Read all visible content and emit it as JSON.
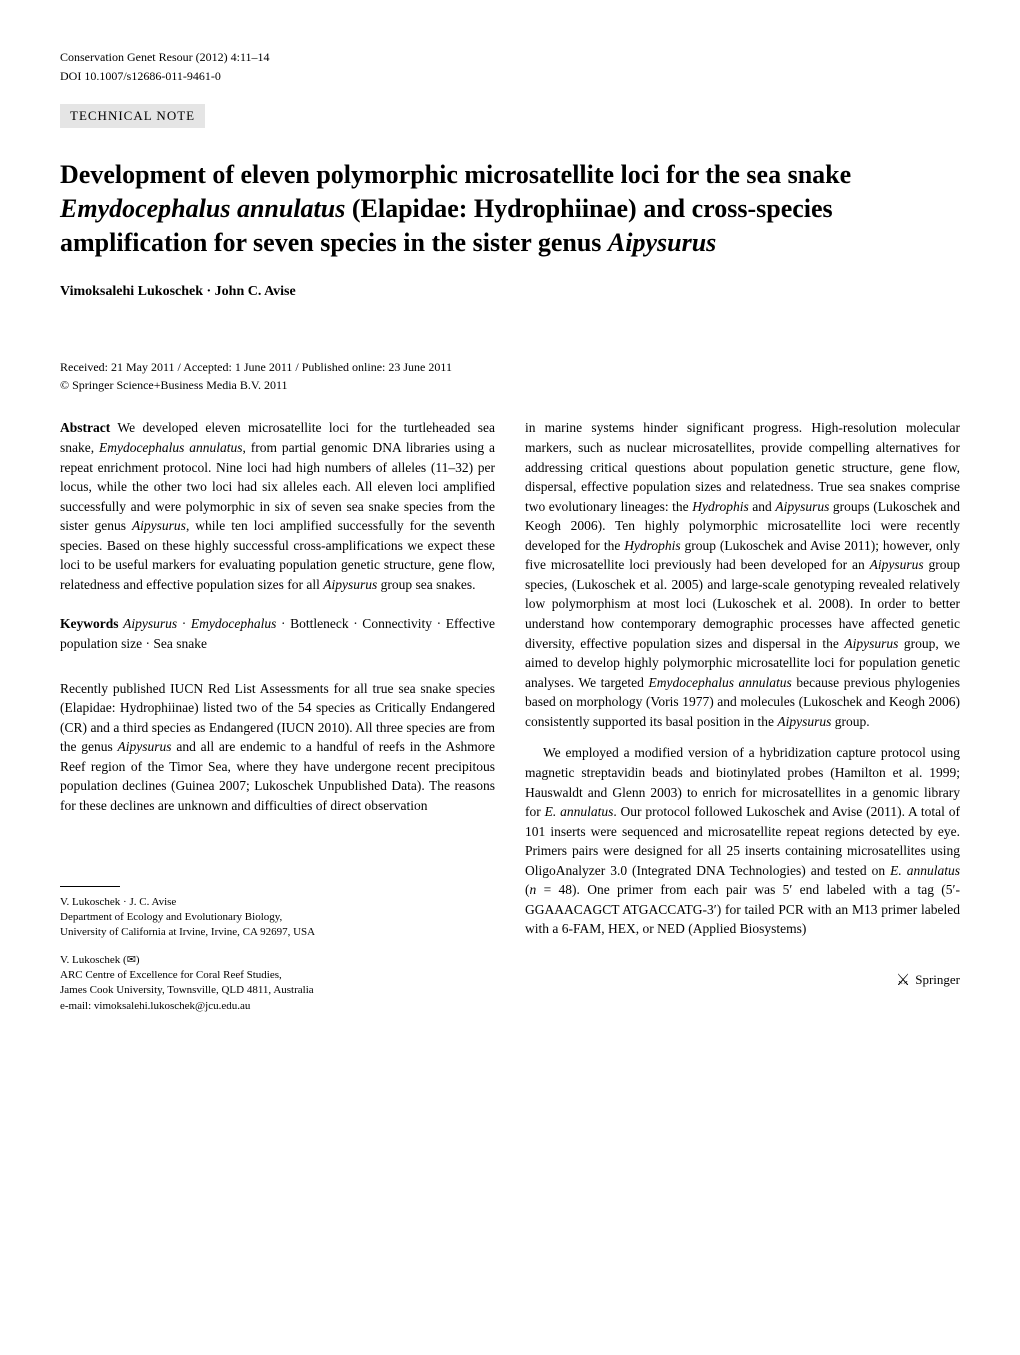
{
  "header": {
    "journal": "Conservation Genet Resour (2012) 4:11–14",
    "doi": "DOI 10.1007/s12686-011-9461-0"
  },
  "section_label": "TECHNICAL NOTE",
  "title_parts": {
    "t1": "Development of eleven polymorphic microsatellite loci for the sea snake ",
    "t2": "Emydocephalus annulatus",
    "t3": " (Elapidae: Hydrophiinae) and cross-species amplification for seven species in the sister genus ",
    "t4": "Aipysurus"
  },
  "authors": "Vimoksalehi Lukoschek · John C. Avise",
  "dates": "Received: 21 May 2011 / Accepted: 1 June 2011 / Published online: 23 June 2011",
  "copyright": "© Springer Science+Business Media B.V. 2011",
  "abstract_label": "Abstract",
  "abstract_text": " We developed eleven microsatellite loci for the turtleheaded sea snake, ",
  "abstract_italic1": "Emydocephalus annulatus",
  "abstract_text2": ", from partial genomic DNA libraries using a repeat enrichment protocol. Nine loci had high numbers of alleles (11–32) per locus, while the other two loci had six alleles each. All eleven loci amplified successfully and were polymorphic in six of seven sea snake species from the sister genus ",
  "abstract_italic2": "Aipysurus",
  "abstract_text3": ", while ten loci amplified successfully for the seventh species. Based on these highly successful cross-amplifications we expect these loci to be useful markers for evaluating population genetic structure, gene flow, relatedness and effective population sizes for all ",
  "abstract_italic3": "Aipysurus",
  "abstract_text4": " group sea snakes.",
  "keywords_label": "Keywords",
  "keywords_text1": " ",
  "keywords_italic1": "Aipysurus",
  "keywords_sep1": " · ",
  "keywords_italic2": "Emydocephalus",
  "keywords_text2": " · Bottleneck · Connectivity · Effective population size · Sea snake",
  "body_p1_t1": "Recently published IUCN Red List Assessments for all true sea snake species (Elapidae: Hydrophiinae) listed two of the 54 species as Critically Endangered (CR) and a third species as Endangered (IUCN 2010). All three species are from the genus ",
  "body_p1_i1": "Aipysurus",
  "body_p1_t2": " and all are endemic to a handful of reefs in the Ashmore Reef region of the Timor Sea, where they have undergone recent precipitous population declines (Guinea 2007; Lukoschek Unpublished Data). The reasons for these declines are unknown and difficulties of direct observation",
  "affil1_line1": "V. Lukoschek · J. C. Avise",
  "affil1_line2": "Department of Ecology and Evolutionary Biology,",
  "affil1_line3": "University of California at Irvine, Irvine, CA 92697, USA",
  "affil2_line1": "V. Lukoschek (✉)",
  "affil2_line2": "ARC Centre of Excellence for Coral Reef Studies,",
  "affil2_line3": "James Cook University, Townsville, QLD 4811, Australia",
  "affil2_line4": "e-mail: vimoksalehi.lukoschek@jcu.edu.au",
  "col2_p1_t1": "in marine systems hinder significant progress. High-resolution molecular markers, such as nuclear microsatellites, provide compelling alternatives for addressing critical questions about population genetic structure, gene flow, dispersal, effective population sizes and relatedness. True sea snakes comprise two evolutionary lineages: the ",
  "col2_p1_i1": "Hydrophis",
  "col2_p1_t2": " and ",
  "col2_p1_i2": "Aipysurus",
  "col2_p1_t3": " groups (Lukoschek and Keogh 2006). Ten highly polymorphic microsatellite loci were recently developed for the ",
  "col2_p1_i3": "Hydrophis",
  "col2_p1_t4": " group (Lukoschek and Avise 2011); however, only five microsatellite loci previously had been developed for an ",
  "col2_p1_i4": "Aipysurus",
  "col2_p1_t5": " group species, (Lukoschek et al. 2005) and large-scale genotyping revealed relatively low polymorphism at most loci (Lukoschek et al. 2008). In order to better understand how contemporary demographic processes have affected genetic diversity, effective population sizes and dispersal in the ",
  "col2_p1_i5": "Aipysurus",
  "col2_p1_t6": " group, we aimed to develop highly polymorphic microsatellite loci for population genetic analyses. We targeted ",
  "col2_p1_i6": "Emydocephalus annulatus",
  "col2_p1_t7": " because previous phylogenies based on morphology (Voris 1977) and molecules (Lukoschek and Keogh 2006) consistently supported its basal position in the ",
  "col2_p1_i7": "Aipysurus",
  "col2_p1_t8": " group.",
  "col2_p2_t1": "We employed a modified version of a hybridization capture protocol using magnetic streptavidin beads and biotinylated probes (Hamilton et al. 1999; Hauswaldt and Glenn 2003) to enrich for microsatellites in a genomic library for ",
  "col2_p2_i1": "E. annulatus",
  "col2_p2_t2": ". Our protocol followed Lukoschek and Avise (2011). A total of 101 inserts were sequenced and microsatellite repeat regions detected by eye. Primers pairs were designed for all 25 inserts containing microsatellites using OligoAnalyzer 3.0 (Integrated DNA Technologies) and tested on ",
  "col2_p2_i2": "E. annulatus",
  "col2_p2_t3": " (",
  "col2_p2_i3": "n",
  "col2_p2_t4": " = 48). One primer from each pair was 5′ end labeled with a tag (5′-GGAAACAGCT ATGACCATG-3′) for tailed PCR with an M13 primer labeled with a 6-FAM, HEX, or NED (Applied Biosystems)",
  "footer_text": "Springer"
}
